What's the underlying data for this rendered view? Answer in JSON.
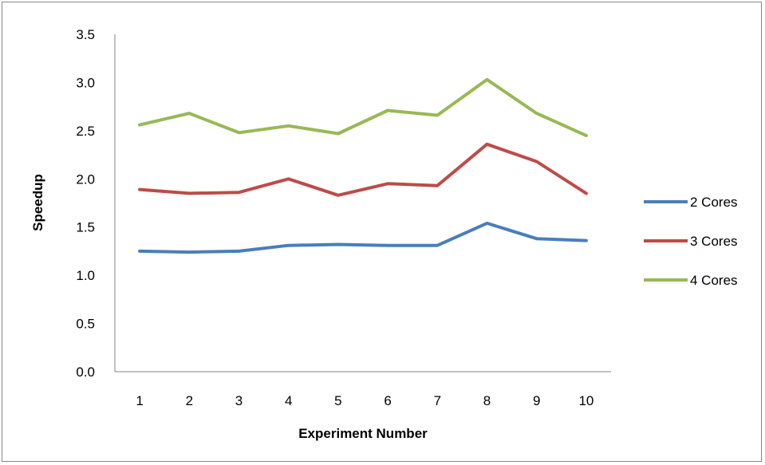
{
  "chart_data": {
    "type": "line",
    "title": "",
    "xlabel": "Experiment Number",
    "ylabel": "Speedup",
    "categories": [
      "1",
      "2",
      "3",
      "4",
      "5",
      "6",
      "7",
      "8",
      "9",
      "10"
    ],
    "ylim": [
      0,
      3.5
    ],
    "yticks": [
      "0.0",
      "0.5",
      "1.0",
      "1.5",
      "2.0",
      "2.5",
      "3.0",
      "3.5"
    ],
    "grid": false,
    "legend_position": "right",
    "series": [
      {
        "name": "2 Cores",
        "color": "#4a7ebb",
        "values": [
          1.25,
          1.24,
          1.25,
          1.31,
          1.32,
          1.31,
          1.31,
          1.54,
          1.38,
          1.36
        ]
      },
      {
        "name": "3 Cores",
        "color": "#be4b48",
        "values": [
          1.89,
          1.85,
          1.86,
          2.0,
          1.83,
          1.95,
          1.93,
          2.36,
          2.18,
          1.85
        ]
      },
      {
        "name": "4 Cores",
        "color": "#98b954",
        "values": [
          2.56,
          2.68,
          2.48,
          2.55,
          2.47,
          2.71,
          2.66,
          3.03,
          2.68,
          2.45
        ]
      }
    ]
  }
}
